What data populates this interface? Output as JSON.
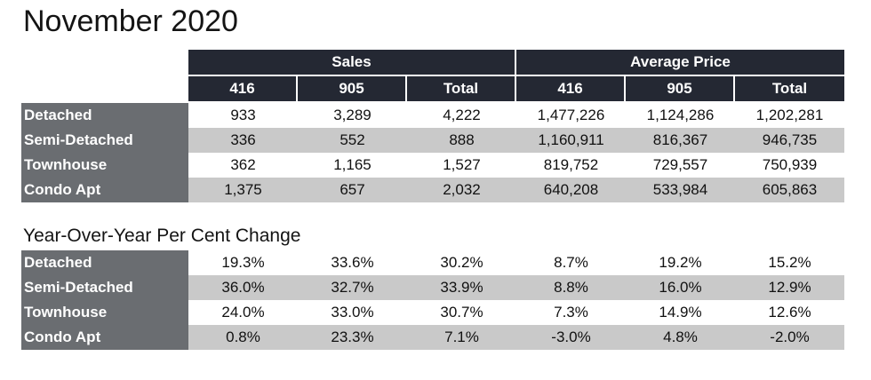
{
  "title": "November 2020",
  "sales_table": {
    "group_headers": [
      "Sales",
      "Average Price"
    ],
    "sub_headers": [
      "416",
      "905",
      "Total",
      "416",
      "905",
      "Total"
    ],
    "rows": [
      {
        "label": "Detached",
        "values": [
          "933",
          "3,289",
          "4,222",
          "1,477,226",
          "1,124,286",
          "1,202,281"
        ]
      },
      {
        "label": "Semi-Detached",
        "values": [
          "336",
          "552",
          "888",
          "1,160,911",
          "816,367",
          "946,735"
        ]
      },
      {
        "label": "Townhouse",
        "values": [
          "362",
          "1,165",
          "1,527",
          "819,752",
          "729,557",
          "750,939"
        ]
      },
      {
        "label": "Condo Apt",
        "values": [
          "1,375",
          "657",
          "2,032",
          "640,208",
          "533,984",
          "605,863"
        ]
      }
    ]
  },
  "yoy_table": {
    "title": "Year-Over-Year Per Cent Change",
    "rows": [
      {
        "label": "Detached",
        "values": [
          "19.3%",
          "33.6%",
          "30.2%",
          "8.7%",
          "19.2%",
          "15.2%"
        ]
      },
      {
        "label": "Semi-Detached",
        "values": [
          "36.0%",
          "32.7%",
          "33.9%",
          "8.8%",
          "16.0%",
          "12.9%"
        ]
      },
      {
        "label": "Townhouse",
        "values": [
          "24.0%",
          "33.0%",
          "30.7%",
          "7.3%",
          "14.9%",
          "12.6%"
        ]
      },
      {
        "label": "Condo Apt",
        "values": [
          "0.8%",
          "23.3%",
          "7.1%",
          "-3.0%",
          "4.8%",
          "-2.0%"
        ]
      }
    ]
  },
  "colors": {
    "header_bg": "#242833",
    "row_label_bg": "#6a6d71",
    "alt_row_bg": "#c9c9c9"
  }
}
